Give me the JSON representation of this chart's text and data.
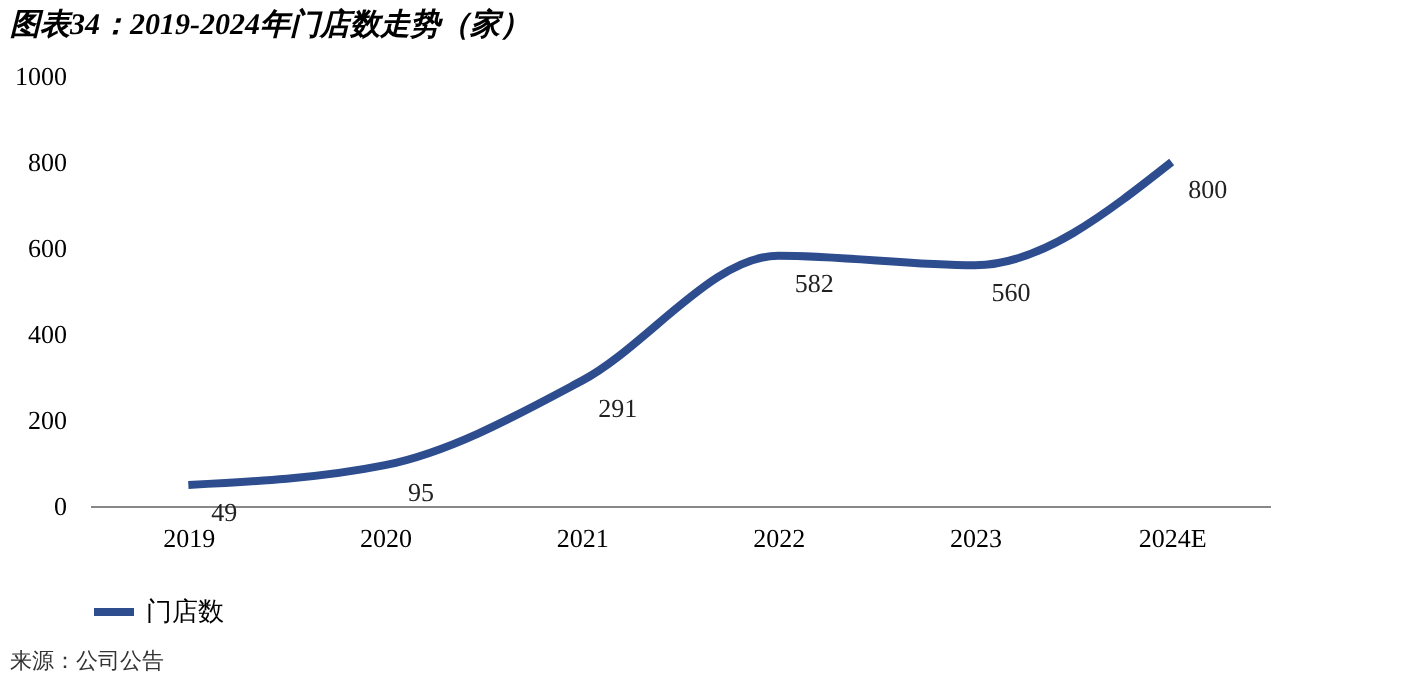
{
  "chart_data": {
    "type": "line",
    "title": "图表34：2019-2024年门店数走势（家）",
    "categories": [
      "2019",
      "2020",
      "2021",
      "2022",
      "2023",
      "2024E"
    ],
    "series": [
      {
        "name": "门店数",
        "color": "#2e4d8f",
        "values": [
          49,
          95,
          291,
          582,
          560,
          800
        ]
      }
    ],
    "ylim": [
      0,
      1000
    ],
    "yticks": [
      0,
      200,
      400,
      600,
      800,
      1000
    ],
    "grid": false,
    "legend": "bottom",
    "data_labels": true,
    "marker": "none",
    "annotations": [
      "来源：公司公告"
    ]
  }
}
